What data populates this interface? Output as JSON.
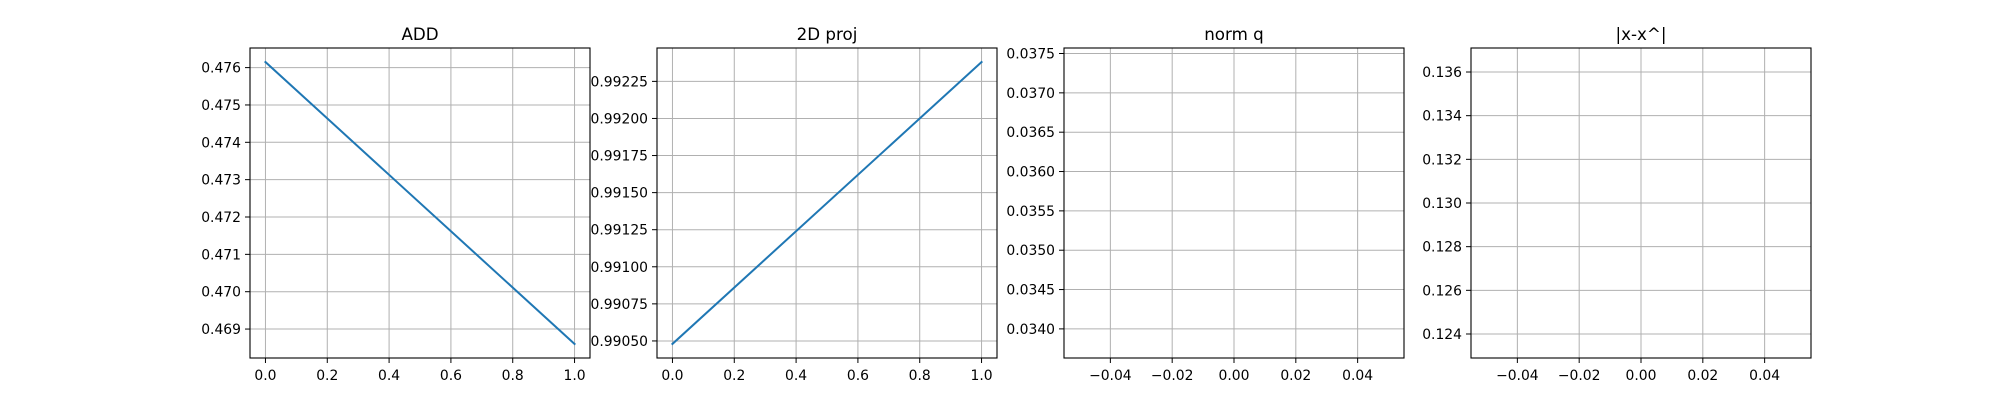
{
  "chart_data": [
    {
      "type": "line",
      "title": "ADD",
      "xlabel": "",
      "ylabel": "",
      "grid": true,
      "xlim": [
        -0.05,
        1.05
      ],
      "ylim": [
        0.468225,
        0.476525
      ],
      "xticks": [
        0.0,
        0.2,
        0.4,
        0.6,
        0.8,
        1.0
      ],
      "xtick_labels": [
        "0.0",
        "0.2",
        "0.4",
        "0.6",
        "0.8",
        "1.0"
      ],
      "yticks": [
        0.469,
        0.47,
        0.471,
        0.472,
        0.473,
        0.474,
        0.475,
        0.476
      ],
      "ytick_labels": [
        "0.469",
        "0.470",
        "0.471",
        "0.472",
        "0.473",
        "0.474",
        "0.475",
        "0.476"
      ],
      "series": [
        {
          "name": "ADD",
          "color": "#1f77b4",
          "x": [
            0,
            1
          ],
          "y": [
            0.47615,
            0.4686
          ]
        }
      ]
    },
    {
      "type": "line",
      "title": "2D proj",
      "xlabel": "",
      "ylabel": "",
      "grid": true,
      "xlim": [
        -0.05,
        1.05
      ],
      "ylim": [
        0.990385,
        0.992475
      ],
      "xticks": [
        0.0,
        0.2,
        0.4,
        0.6,
        0.8,
        1.0
      ],
      "xtick_labels": [
        "0.0",
        "0.2",
        "0.4",
        "0.6",
        "0.8",
        "1.0"
      ],
      "yticks": [
        0.9905,
        0.99075,
        0.991,
        0.99125,
        0.9915,
        0.99175,
        0.992,
        0.99225
      ],
      "ytick_labels": [
        "0.99050",
        "0.99075",
        "0.99100",
        "0.99125",
        "0.99150",
        "0.99175",
        "0.99200",
        "0.99225"
      ],
      "series": [
        {
          "name": "2D proj",
          "color": "#1f77b4",
          "x": [
            0,
            1
          ],
          "y": [
            0.99048,
            0.99238
          ]
        }
      ]
    },
    {
      "type": "line",
      "title": "norm q",
      "xlabel": "",
      "ylabel": "",
      "grid": true,
      "xlim": [
        -0.055,
        0.055
      ],
      "ylim": [
        0.03363,
        0.03757
      ],
      "xticks": [
        -0.04,
        -0.02,
        0.0,
        0.02,
        0.04
      ],
      "xtick_labels": [
        "−0.04",
        "−0.02",
        "0.00",
        "0.02",
        "0.04"
      ],
      "yticks": [
        0.034,
        0.0345,
        0.035,
        0.0355,
        0.036,
        0.0365,
        0.037,
        0.0375
      ],
      "ytick_labels": [
        "0.0340",
        "0.0345",
        "0.0350",
        "0.0355",
        "0.0360",
        "0.0365",
        "0.0370",
        "0.0375"
      ],
      "series": []
    },
    {
      "type": "line",
      "title": "|x-x^|",
      "xlabel": "",
      "ylabel": "",
      "grid": true,
      "xlim": [
        -0.055,
        0.055
      ],
      "ylim": [
        0.1229,
        0.1371
      ],
      "xticks": [
        -0.04,
        -0.02,
        0.0,
        0.02,
        0.04
      ],
      "xtick_labels": [
        "−0.04",
        "−0.02",
        "0.00",
        "0.02",
        "0.04"
      ],
      "yticks": [
        0.124,
        0.126,
        0.128,
        0.13,
        0.132,
        0.134,
        0.136
      ],
      "ytick_labels": [
        "0.124",
        "0.126",
        "0.128",
        "0.130",
        "0.132",
        "0.134",
        "0.136"
      ],
      "series": []
    }
  ]
}
